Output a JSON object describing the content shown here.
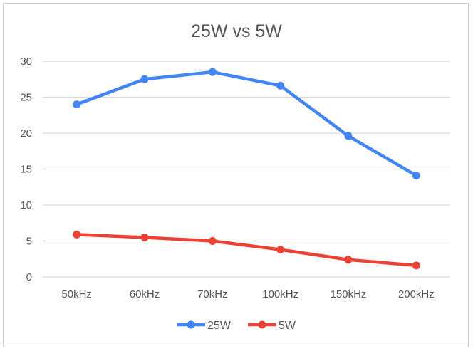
{
  "chart_data": {
    "type": "line",
    "title": "25W vs 5W",
    "xlabel": "",
    "ylabel": "",
    "categories": [
      "50kHz",
      "60kHz",
      "70kHz",
      "100kHz",
      "150kHz",
      "200kHz"
    ],
    "series": [
      {
        "name": "25W",
        "color": "#4285f4",
        "values": [
          24.0,
          27.5,
          28.5,
          26.6,
          19.6,
          14.1
        ]
      },
      {
        "name": "5W",
        "color": "#ea4335",
        "values": [
          5.9,
          5.5,
          5.0,
          3.8,
          2.4,
          1.6
        ]
      }
    ],
    "ylim": [
      0,
      30
    ],
    "yticks": [
      "0",
      "5",
      "10",
      "15",
      "20",
      "25",
      "30"
    ],
    "grid": true,
    "legend_position": "bottom"
  }
}
